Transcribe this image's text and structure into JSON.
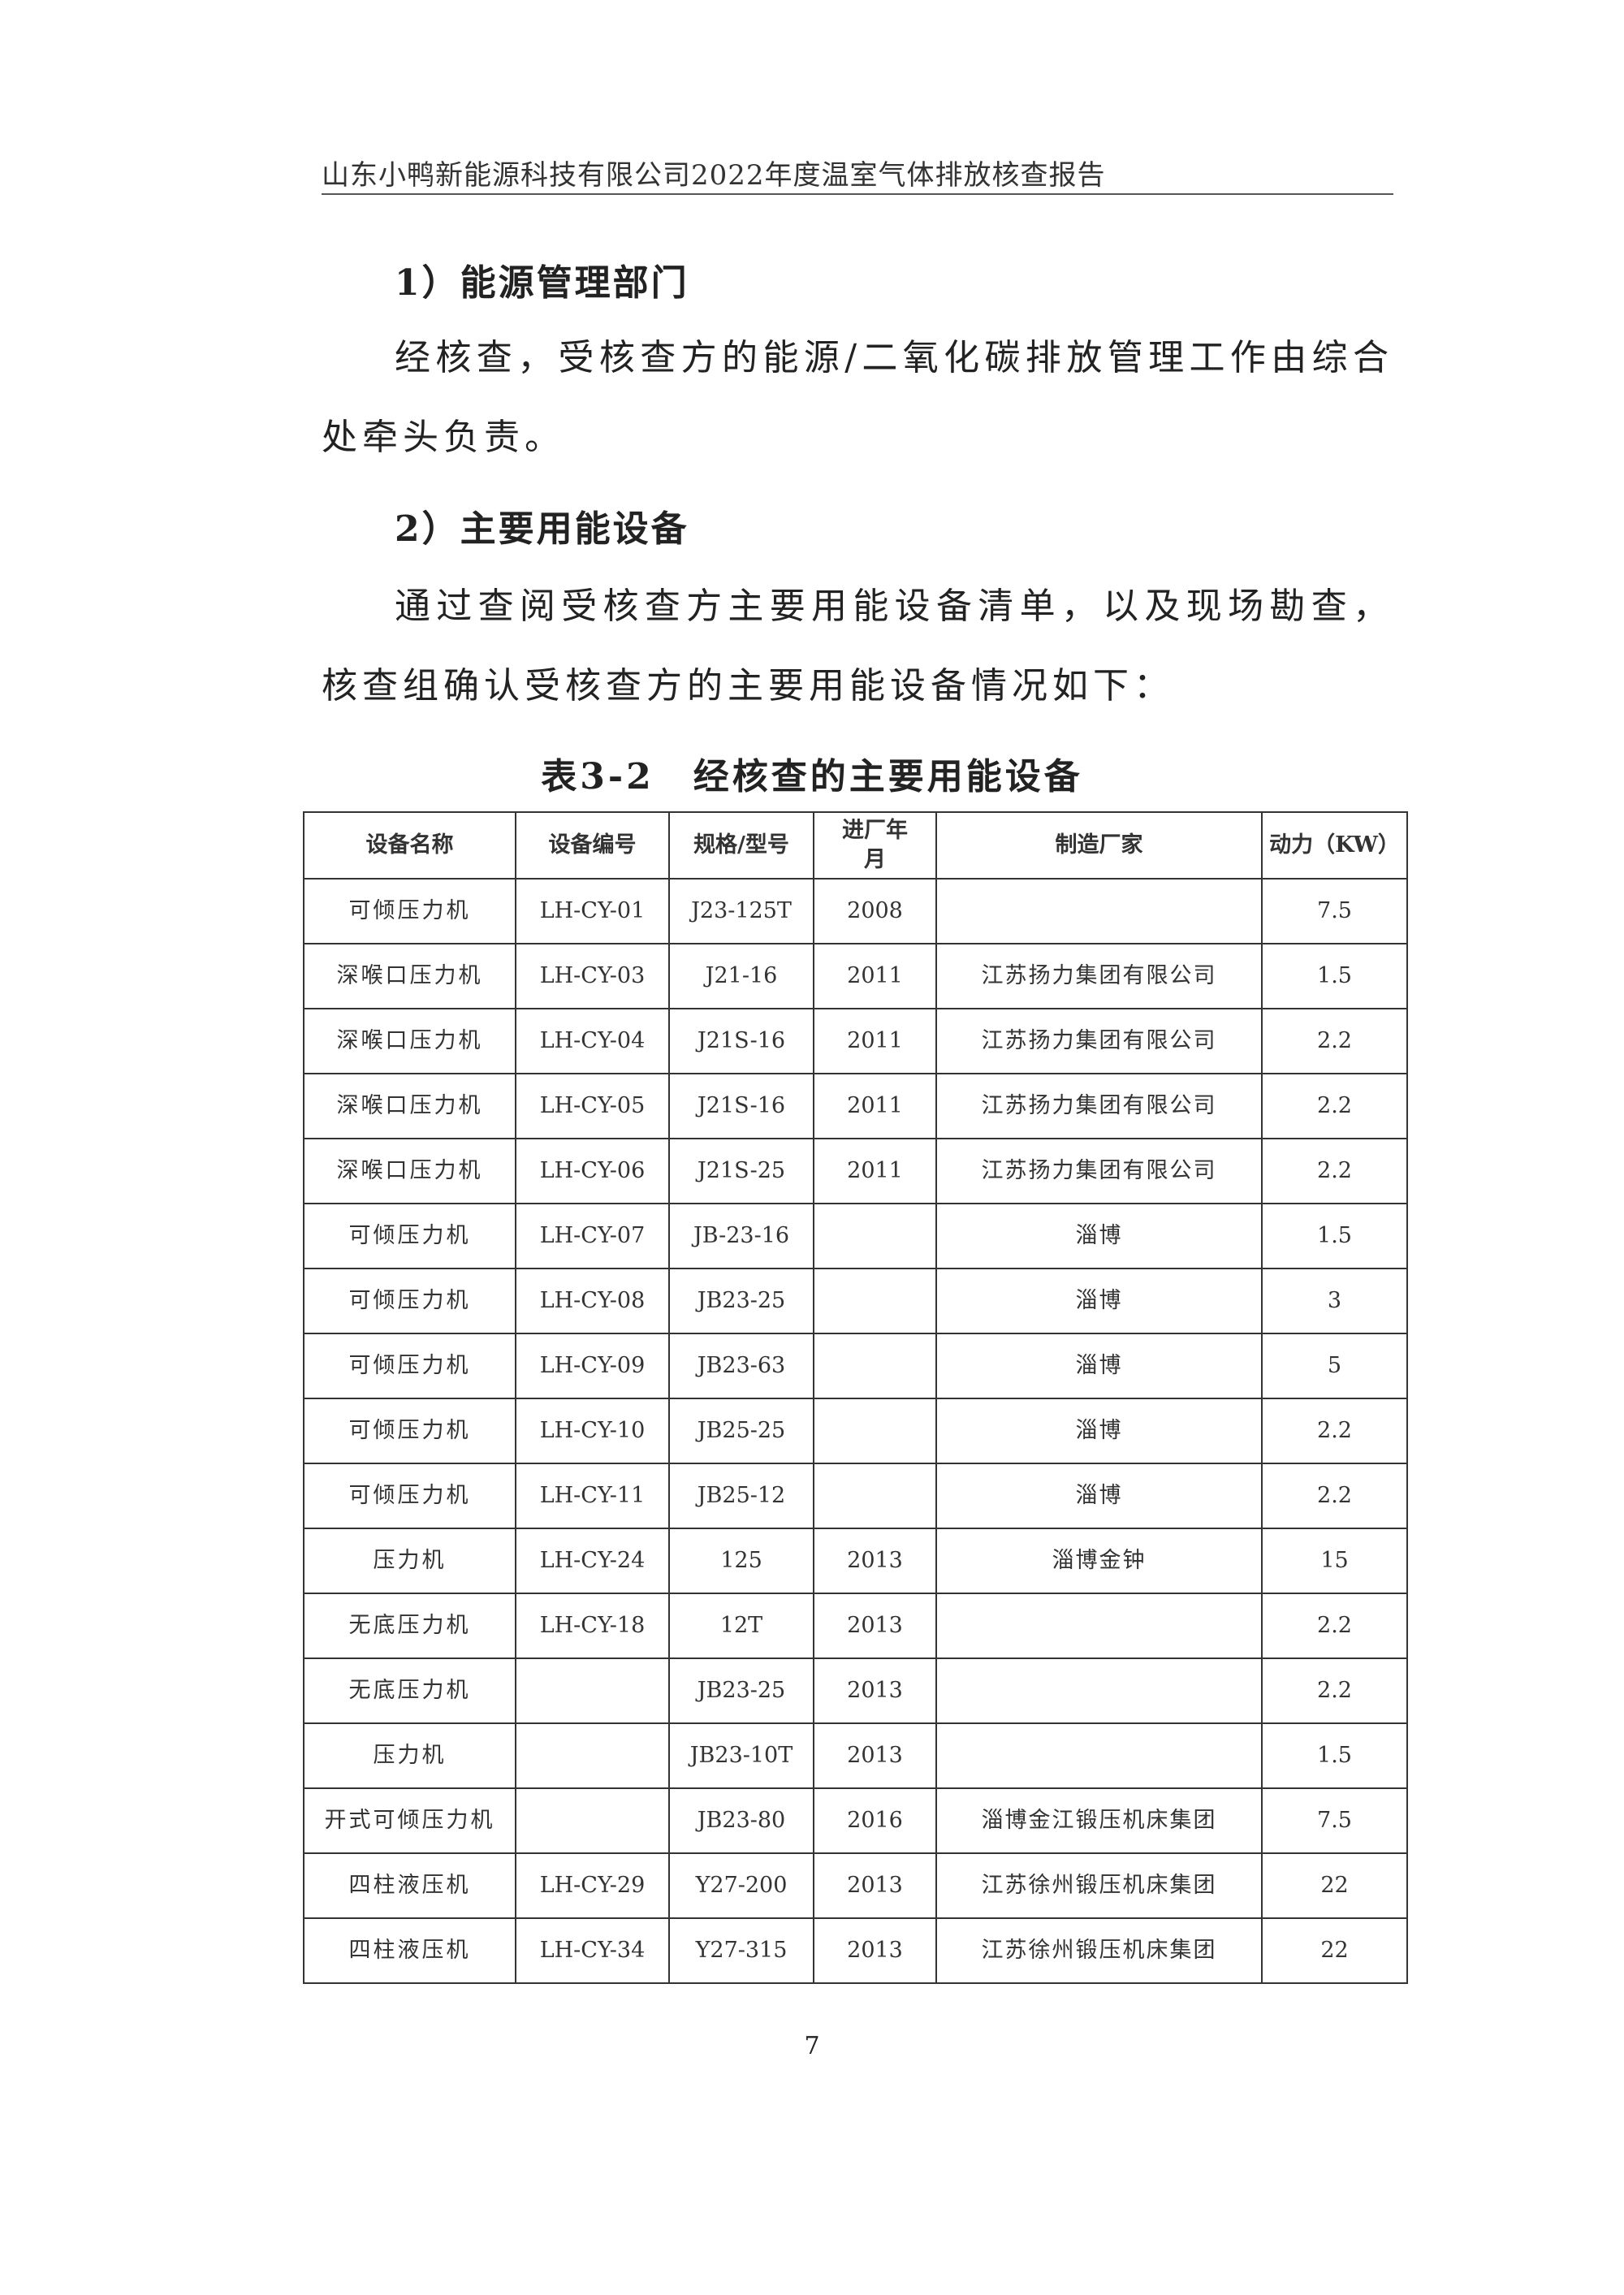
{
  "header": {
    "title": "山东小鸭新能源科技有限公司2022年度温室气体排放核查报告"
  },
  "section1": {
    "heading": "1）能源管理部门",
    "paragraph": "经核查，受核查方的能源/二氧化碳排放管理工作由综合处牵头负责。"
  },
  "section2": {
    "heading": "2）主要用能设备",
    "paragraph": "通过查阅受核查方主要用能设备清单，以及现场勘查，核查组确认受核查方的主要用能设备情况如下："
  },
  "table": {
    "caption": "表3-2　经核查的主要用能设备",
    "columns": [
      "设备名称",
      "设备编号",
      "规格/型号",
      "进厂年月",
      "制造厂家",
      "动力（KW）"
    ],
    "rows": [
      [
        "可倾压力机",
        "LH-CY-01",
        "J23-125T",
        "2008",
        "",
        "7.5"
      ],
      [
        "深喉口压力机",
        "LH-CY-03",
        "J21-16",
        "2011",
        "江苏扬力集团有限公司",
        "1.5"
      ],
      [
        "深喉口压力机",
        "LH-CY-04",
        "J21S-16",
        "2011",
        "江苏扬力集团有限公司",
        "2.2"
      ],
      [
        "深喉口压力机",
        "LH-CY-05",
        "J21S-16",
        "2011",
        "江苏扬力集团有限公司",
        "2.2"
      ],
      [
        "深喉口压力机",
        "LH-CY-06",
        "J21S-25",
        "2011",
        "江苏扬力集团有限公司",
        "2.2"
      ],
      [
        "可倾压力机",
        "LH-CY-07",
        "JB-23-16",
        "",
        "淄博",
        "1.5"
      ],
      [
        "可倾压力机",
        "LH-CY-08",
        "JB23-25",
        "",
        "淄博",
        "3"
      ],
      [
        "可倾压力机",
        "LH-CY-09",
        "JB23-63",
        "",
        "淄博",
        "5"
      ],
      [
        "可倾压力机",
        "LH-CY-10",
        "JB25-25",
        "",
        "淄博",
        "2.2"
      ],
      [
        "可倾压力机",
        "LH-CY-11",
        "JB25-12",
        "",
        "淄博",
        "2.2"
      ],
      [
        "压力机",
        "LH-CY-24",
        "125",
        "2013",
        "淄博金钟",
        "15"
      ],
      [
        "无底压力机",
        "LH-CY-18",
        "12T",
        "2013",
        "",
        "2.2"
      ],
      [
        "无底压力机",
        "",
        "JB23-25",
        "2013",
        "",
        "2.2"
      ],
      [
        "压力机",
        "",
        "JB23-10T",
        "2013",
        "",
        "1.5"
      ],
      [
        "开式可倾压力机",
        "",
        "JB23-80",
        "2016",
        "淄博金江锻压机床集团",
        "7.5"
      ],
      [
        "四柱液压机",
        "LH-CY-29",
        "Y27-200",
        "2013",
        "江苏徐州锻压机床集团",
        "22"
      ],
      [
        "四柱液压机",
        "LH-CY-34",
        "Y27-315",
        "2013",
        "江苏徐州锻压机床集团",
        "22"
      ]
    ]
  },
  "page_number": "7"
}
